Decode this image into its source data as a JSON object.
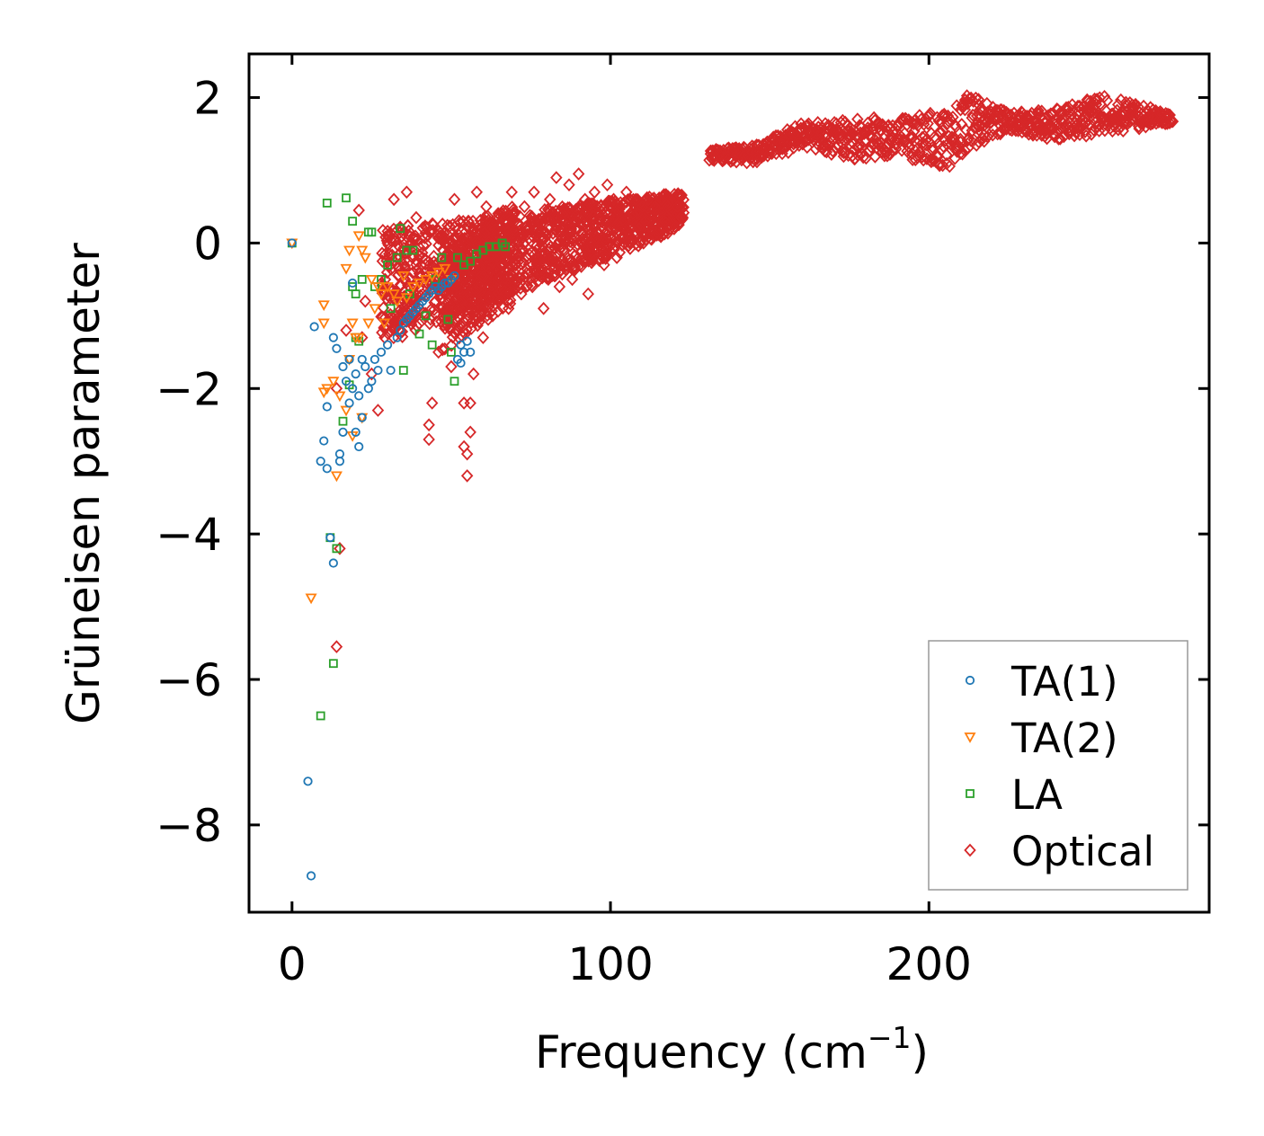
{
  "chart_data": {
    "type": "scatter",
    "title": "",
    "xlabel": "Frequency (cm",
    "xlabel_sup": "−1",
    "xlabel_close": ")",
    "ylabel": "Grüneisen parameter",
    "xlim": [
      -13.5,
      288
    ],
    "ylim": [
      -9.2,
      2.6
    ],
    "xticks": [
      0,
      100,
      200
    ],
    "xtick_labels": [
      "0",
      "100",
      "200"
    ],
    "yticks": [
      2,
      0,
      -2,
      -4,
      -6,
      -8
    ],
    "ytick_labels": [
      "2",
      "0",
      "−2",
      "−4",
      "−6",
      "−8"
    ],
    "grid": false,
    "legend_position": "lower-right",
    "series": [
      {
        "name": "TA(1)",
        "marker": "circle",
        "color": "#1f77b4",
        "points": [
          [
            0,
            0
          ],
          [
            5,
            -7.4
          ],
          [
            6,
            -8.7
          ],
          [
            7,
            -1.15
          ],
          [
            9,
            -3.0
          ],
          [
            10,
            -2.72
          ],
          [
            11,
            -2.25
          ],
          [
            11,
            -3.1
          ],
          [
            12,
            -4.05
          ],
          [
            13,
            -4.4
          ],
          [
            13,
            -1.3
          ],
          [
            14,
            -1.45
          ],
          [
            15,
            -2.9
          ],
          [
            15,
            -3.0
          ],
          [
            16,
            -1.7
          ],
          [
            16,
            -2.6
          ],
          [
            17,
            -1.9
          ],
          [
            18,
            -1.6
          ],
          [
            18,
            -2.2
          ],
          [
            19,
            -0.55
          ],
          [
            19,
            -2.0
          ],
          [
            20,
            -1.8
          ],
          [
            20,
            -2.6
          ],
          [
            21,
            -2.8
          ],
          [
            21,
            -2.1
          ],
          [
            22,
            -1.6
          ],
          [
            22,
            -2.4
          ],
          [
            23,
            -1.7
          ],
          [
            24,
            -2.0
          ],
          [
            25,
            -1.9
          ],
          [
            26,
            -1.6
          ],
          [
            27,
            -1.75
          ],
          [
            28,
            -1.5
          ],
          [
            30,
            -1.4
          ],
          [
            31,
            -1.75
          ],
          [
            33,
            -1.3
          ],
          [
            34,
            -1.2
          ],
          [
            35,
            -1.1
          ],
          [
            36,
            -1.05
          ],
          [
            37,
            -1.0
          ],
          [
            38,
            -0.95
          ],
          [
            39,
            -0.9
          ],
          [
            40,
            -0.85
          ],
          [
            41,
            -0.8
          ],
          [
            42,
            -0.75
          ],
          [
            43,
            -0.7
          ],
          [
            44,
            -0.65
          ],
          [
            45,
            -0.6
          ],
          [
            46,
            -0.65
          ],
          [
            47,
            -0.6
          ],
          [
            48,
            -0.55
          ],
          [
            49,
            -0.55
          ],
          [
            50,
            -0.5
          ],
          [
            51,
            -0.45
          ],
          [
            52,
            -1.6
          ],
          [
            53,
            -1.65
          ],
          [
            53,
            -1.4
          ],
          [
            54,
            -1.5
          ],
          [
            55,
            -1.35
          ],
          [
            56,
            -1.5
          ]
        ]
      },
      {
        "name": "TA(2)",
        "marker": "triangle-down",
        "color": "#ff7f0e",
        "points": [
          [
            0,
            0
          ],
          [
            6,
            -4.88
          ],
          [
            10,
            -0.85
          ],
          [
            10,
            -1.1
          ],
          [
            10,
            -2.05
          ],
          [
            11,
            -2.0
          ],
          [
            13,
            -1.9
          ],
          [
            14,
            -3.2
          ],
          [
            15,
            -2.1
          ],
          [
            17,
            -2.3
          ],
          [
            17,
            -0.35
          ],
          [
            18,
            -0.1
          ],
          [
            18,
            -1.6
          ],
          [
            19,
            -1.1
          ],
          [
            19,
            -2.65
          ],
          [
            20,
            -1.3
          ],
          [
            21,
            0.1
          ],
          [
            21,
            -1.3
          ],
          [
            22,
            -0.1
          ],
          [
            22,
            -2.4
          ],
          [
            23,
            -0.2
          ],
          [
            24,
            -1.1
          ],
          [
            25,
            -0.5
          ],
          [
            26,
            -0.9
          ],
          [
            27,
            -0.6
          ],
          [
            28,
            -0.7
          ],
          [
            29,
            -1.1
          ],
          [
            30,
            -0.6
          ],
          [
            32,
            -0.7
          ],
          [
            33,
            -0.8
          ],
          [
            35,
            -0.45
          ],
          [
            36,
            -0.75
          ],
          [
            38,
            -0.6
          ],
          [
            40,
            -0.55
          ],
          [
            42,
            -0.5
          ],
          [
            44,
            -0.45
          ],
          [
            46,
            -0.4
          ],
          [
            48,
            -0.35
          ],
          [
            50,
            -0.5
          ]
        ]
      },
      {
        "name": "LA",
        "marker": "square",
        "color": "#2ca02c",
        "points": [
          [
            0,
            0
          ],
          [
            9,
            -6.5
          ],
          [
            11,
            0.55
          ],
          [
            12,
            -4.05
          ],
          [
            13,
            -5.78
          ],
          [
            14,
            -4.2
          ],
          [
            16,
            -2.45
          ],
          [
            17,
            0.62
          ],
          [
            18,
            -1.95
          ],
          [
            19,
            -0.6
          ],
          [
            19,
            0.3
          ],
          [
            20,
            -0.7
          ],
          [
            20,
            -1.3
          ],
          [
            21,
            -1.35
          ],
          [
            22,
            -0.5
          ],
          [
            24,
            0.15
          ],
          [
            25,
            0.15
          ],
          [
            26,
            -0.6
          ],
          [
            28,
            -0.5
          ],
          [
            30,
            -0.3
          ],
          [
            31,
            -0.9
          ],
          [
            33,
            -0.2
          ],
          [
            34,
            0.2
          ],
          [
            35,
            -1.75
          ],
          [
            36,
            -0.1
          ],
          [
            37,
            -0.7
          ],
          [
            38,
            -0.1
          ],
          [
            40,
            -1.25
          ],
          [
            42,
            -1.0
          ],
          [
            44,
            -1.4
          ],
          [
            45,
            -0.5
          ],
          [
            47,
            -0.2
          ],
          [
            49,
            -1.05
          ],
          [
            50,
            -1.5
          ],
          [
            51,
            -1.9
          ],
          [
            52,
            -0.2
          ],
          [
            54,
            -0.3
          ],
          [
            56,
            -0.25
          ],
          [
            58,
            -0.15
          ],
          [
            60,
            -0.1
          ],
          [
            62,
            -0.05
          ],
          [
            64,
            -0.05
          ],
          [
            66,
            0.0
          ],
          [
            67,
            -0.05
          ]
        ]
      },
      {
        "name": "Optical",
        "marker": "diamond",
        "color": "#d62728",
        "points": [
          [
            14,
            -5.55
          ],
          [
            15,
            -4.2
          ],
          [
            14,
            -2.0
          ],
          [
            17,
            -1.2
          ],
          [
            21,
            0.45
          ],
          [
            22,
            -1.3
          ],
          [
            23,
            -0.8
          ],
          [
            25,
            -1.8
          ],
          [
            27,
            -2.3
          ],
          [
            29,
            -0.7
          ],
          [
            30,
            0.0
          ],
          [
            32,
            0.6
          ],
          [
            34,
            0.2
          ],
          [
            36,
            0.7
          ],
          [
            37,
            -0.6
          ],
          [
            39,
            0.35
          ],
          [
            41,
            -0.2
          ],
          [
            43,
            -2.7
          ],
          [
            43,
            -2.5
          ],
          [
            44,
            -2.2
          ],
          [
            45,
            -0.8
          ],
          [
            46,
            -1.5
          ],
          [
            47,
            0.1
          ],
          [
            48,
            -0.3
          ],
          [
            49,
            -0.9
          ],
          [
            50,
            -1.7
          ],
          [
            51,
            0.6
          ],
          [
            52,
            -0.5
          ],
          [
            53,
            -0.8
          ],
          [
            54,
            -2.2
          ],
          [
            54,
            -2.8
          ],
          [
            55,
            -3.2
          ],
          [
            55,
            -2.9
          ],
          [
            56,
            -2.6
          ],
          [
            56,
            -2.2
          ],
          [
            57,
            -1.8
          ],
          [
            57,
            0.2
          ],
          [
            58,
            0.7
          ],
          [
            58,
            -1.0
          ],
          [
            59,
            -0.6
          ],
          [
            60,
            -1.3
          ],
          [
            61,
            0.5
          ],
          [
            62,
            -0.2
          ],
          [
            63,
            -1.0
          ],
          [
            64,
            0.1
          ],
          [
            65,
            -0.8
          ],
          [
            66,
            -0.3
          ],
          [
            67,
            0.4
          ],
          [
            68,
            -0.9
          ],
          [
            69,
            0.7
          ],
          [
            70,
            -0.5
          ],
          [
            71,
            0.0
          ],
          [
            72,
            -0.7
          ],
          [
            73,
            0.5
          ],
          [
            74,
            0.2
          ],
          [
            75,
            -0.4
          ],
          [
            76,
            0.7
          ],
          [
            77,
            -0.3
          ],
          [
            78,
            0.3
          ],
          [
            79,
            -0.9
          ],
          [
            80,
            0.1
          ],
          [
            81,
            0.6
          ],
          [
            82,
            -0.2
          ],
          [
            83,
            0.9
          ],
          [
            84,
            -0.6
          ],
          [
            85,
            0.4
          ],
          [
            86,
            0.0
          ],
          [
            87,
            0.8
          ],
          [
            88,
            -0.5
          ],
          [
            89,
            0.3
          ],
          [
            90,
            0.95
          ],
          [
            91,
            -0.2
          ],
          [
            92,
            0.6
          ],
          [
            93,
            -0.7
          ],
          [
            94,
            0.2
          ],
          [
            95,
            0.7
          ],
          [
            96,
            -0.1
          ],
          [
            97,
            0.5
          ],
          [
            98,
            -0.3
          ],
          [
            99,
            0.8
          ],
          [
            100,
            0.0
          ],
          [
            101,
            0.6
          ],
          [
            102,
            -0.2
          ],
          [
            103,
            0.5
          ],
          [
            104,
            0.1
          ],
          [
            105,
            0.7
          ],
          [
            106,
            0.0
          ],
          [
            107,
            0.4
          ],
          [
            108,
            0.6
          ],
          [
            109,
            0.2
          ],
          [
            110,
            0.5
          ],
          [
            111,
            0.3
          ],
          [
            112,
            0.6
          ],
          [
            113,
            0.2
          ],
          [
            114,
            0.5
          ],
          [
            115,
            0.4
          ],
          [
            116,
            0.6
          ],
          [
            117,
            0.3
          ],
          [
            118,
            0.5
          ],
          [
            119,
            0.45
          ],
          [
            120,
            0.6
          ],
          [
            121,
            0.5
          ],
          [
            122,
            0.65
          ]
        ]
      }
    ],
    "dense_regions": [
      {
        "series": "Optical",
        "x_from": 28,
        "x_to": 123,
        "low_from": -1.4,
        "low_to": 0.2,
        "high_from": 0.2,
        "high_to": 0.7
      },
      {
        "series": "Optical",
        "x_from": 47,
        "x_to": 70,
        "low_from": -1.5,
        "low_to": -0.8,
        "high_from": -0.2,
        "high_to": 0.6
      }
    ],
    "high_branch": {
      "series": "Optical",
      "x_from": 131,
      "x_to": 276,
      "step": 0.7,
      "low": [
        [
          131,
          1.12
        ],
        [
          145,
          1.1
        ],
        [
          160,
          1.3
        ],
        [
          175,
          1.15
        ],
        [
          190,
          1.2
        ],
        [
          205,
          1.0
        ],
        [
          212,
          1.3
        ],
        [
          225,
          1.55
        ],
        [
          240,
          1.4
        ],
        [
          255,
          1.5
        ],
        [
          270,
          1.6
        ],
        [
          276,
          1.65
        ]
      ],
      "high": [
        [
          131,
          1.28
        ],
        [
          145,
          1.35
        ],
        [
          160,
          1.65
        ],
        [
          175,
          1.7
        ],
        [
          190,
          1.75
        ],
        [
          205,
          1.8
        ],
        [
          212,
          2.05
        ],
        [
          225,
          1.8
        ],
        [
          240,
          1.85
        ],
        [
          255,
          2.05
        ],
        [
          270,
          1.85
        ],
        [
          276,
          1.75
        ]
      ]
    }
  }
}
